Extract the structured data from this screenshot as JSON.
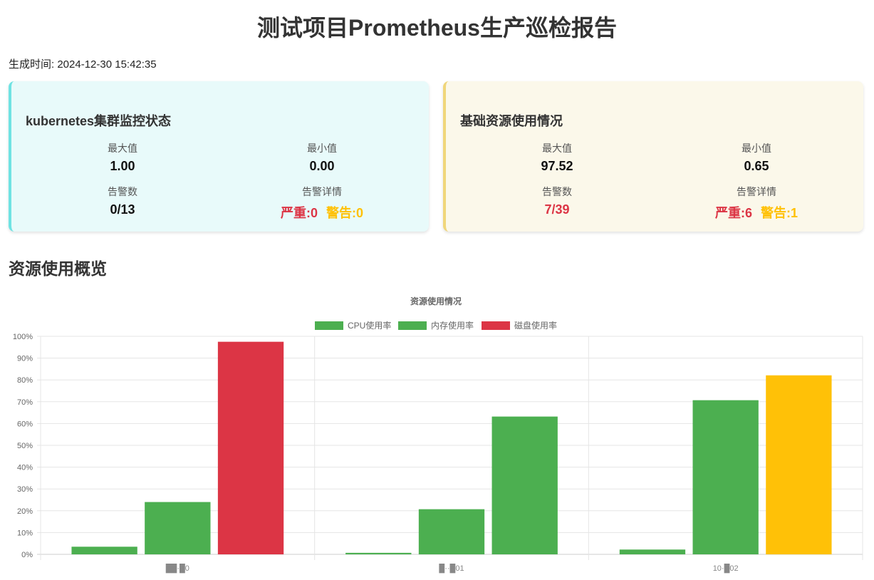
{
  "page": {
    "title": "测试项目Prometheus生产巡检报告",
    "generated_label": "生成时间: 2024-12-30 15:42:35"
  },
  "cards": {
    "k8s": {
      "title": "kubernetes集群监控状态",
      "max_label": "最大值",
      "max_value": "1.00",
      "min_label": "最小值",
      "min_value": "0.00",
      "count_label": "告警数",
      "count_value": "0/13",
      "detail_label": "告警详情",
      "critical": "严重:0",
      "warning": "警告:0"
    },
    "base": {
      "title": "基础资源使用情况",
      "max_label": "最大值",
      "max_value": "97.52",
      "min_label": "最小值",
      "min_value": "0.65",
      "count_label": "告警数",
      "count_value": "7/39",
      "detail_label": "告警详情",
      "critical": "严重:6",
      "warning": "警告:1"
    }
  },
  "section": {
    "title": "资源使用概览"
  },
  "colors": {
    "green": "#4caf50",
    "red": "#dc3545",
    "yellow": "#ffc107"
  },
  "chart_data": {
    "type": "bar",
    "title": "资源使用情况",
    "legend_position": "top",
    "grid": true,
    "ylim": [
      0,
      100
    ],
    "ytick_step": 10,
    "ytick_suffix": "%",
    "categories": [
      "██·█0",
      "█··█01",
      "10·█02"
    ],
    "series": [
      {
        "name": "CPU使用率",
        "legend_color": "#4caf50",
        "values": [
          3.5,
          0.7,
          2.2
        ],
        "colors": [
          "#4caf50",
          "#4caf50",
          "#4caf50"
        ]
      },
      {
        "name": "内存使用率",
        "legend_color": "#4caf50",
        "values": [
          24,
          20.7,
          70.7
        ],
        "colors": [
          "#4caf50",
          "#4caf50",
          "#4caf50"
        ]
      },
      {
        "name": "磁盘使用率",
        "legend_color": "#dc3545",
        "values": [
          97.5,
          63.2,
          82.1
        ],
        "colors": [
          "#dc3545",
          "#4caf50",
          "#ffc107"
        ]
      }
    ]
  }
}
